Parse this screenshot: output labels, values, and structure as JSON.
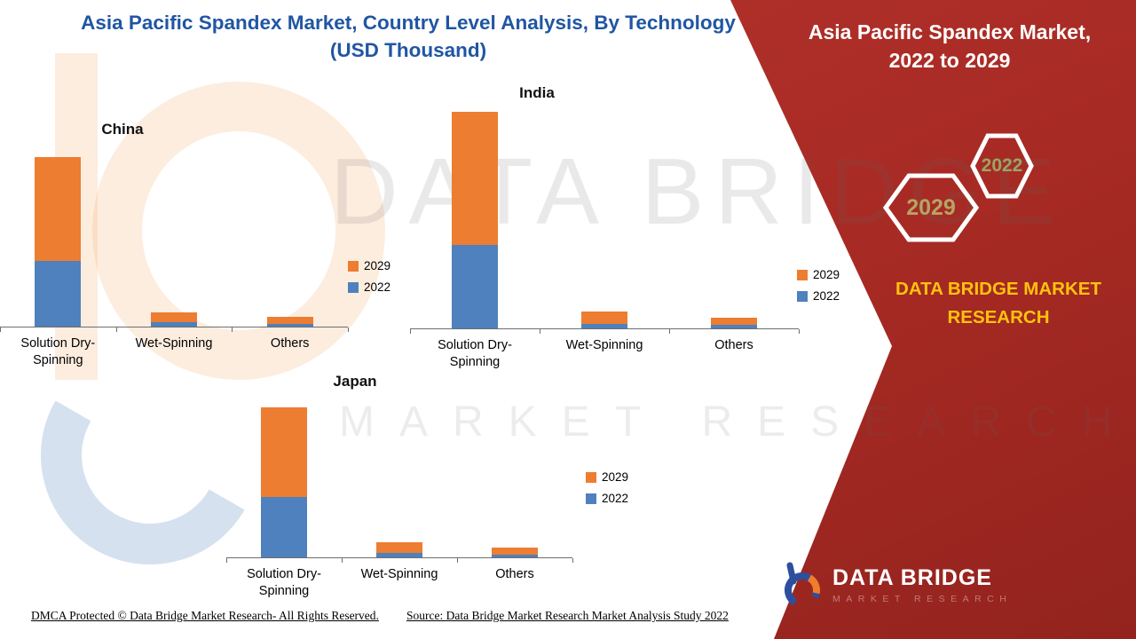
{
  "page": {
    "title_lines": [
      "Asia Pacific Spandex Market, Country Level Analysis, By Technology",
      "(USD Thousand)"
    ]
  },
  "right_panel": {
    "title_lines": [
      "Asia Pacific Spandex Market,",
      "2022 to 2029"
    ],
    "hexagons": [
      {
        "label": "2029",
        "label_color": "#b4a565"
      },
      {
        "label": "2022",
        "label_color": "#9aa562"
      }
    ],
    "brand_lines": [
      "DATA BRIDGE MARKET",
      "RESEARCH"
    ],
    "logo": {
      "wordmark": "DATA BRIDGE",
      "tagline": "MARKET RESEARCH"
    }
  },
  "watermark": {
    "line1": "DATA BRIDGE",
    "line2": "MARKET RESEARCH"
  },
  "legend": {
    "items": [
      {
        "label": "2029",
        "color": "#ED7D31"
      },
      {
        "label": "2022",
        "color": "#4E81BD"
      }
    ]
  },
  "footer": {
    "dmca": "DMCA Protected © Data Bridge Market Research- All Rights Reserved.",
    "source": "Source: Data Bridge Market Research Market Analysis Study 2022"
  },
  "colors": {
    "title_blue": "#2056a3",
    "accent_red": "#a82a24",
    "brand_yellow": "#ffc20e",
    "bar_2022": "#4E81BD",
    "bar_2029": "#ED7D31"
  },
  "chart_data": {
    "type": "bar",
    "stacked": true,
    "title": "Asia Pacific Spandex Market, Country Level Analysis, By Technology (USD Thousand)",
    "unit": "USD Thousand",
    "axis_values_labeled": false,
    "note": "Y-axis has no tick labels in source; segment values are relative estimates read from bar heights.",
    "categories": [
      "Solution Dry-Spinning",
      "Wet-Spinning",
      "Others"
    ],
    "series_names": [
      "2022",
      "2029"
    ],
    "legend_position": "right",
    "charts": [
      {
        "country": "China",
        "series": [
          {
            "name": "2022",
            "values": [
              74,
              5,
              3
            ]
          },
          {
            "name": "2029",
            "values": [
              117,
              11,
              8
            ]
          }
        ]
      },
      {
        "country": "India",
        "series": [
          {
            "name": "2022",
            "values": [
              94,
              5,
              4
            ]
          },
          {
            "name": "2029",
            "values": [
              150,
              14,
              8
            ]
          }
        ]
      },
      {
        "country": "Japan",
        "series": [
          {
            "name": "2022",
            "values": [
              68,
              5,
              3
            ]
          },
          {
            "name": "2029",
            "values": [
              101,
              12,
              8
            ]
          }
        ]
      }
    ]
  }
}
